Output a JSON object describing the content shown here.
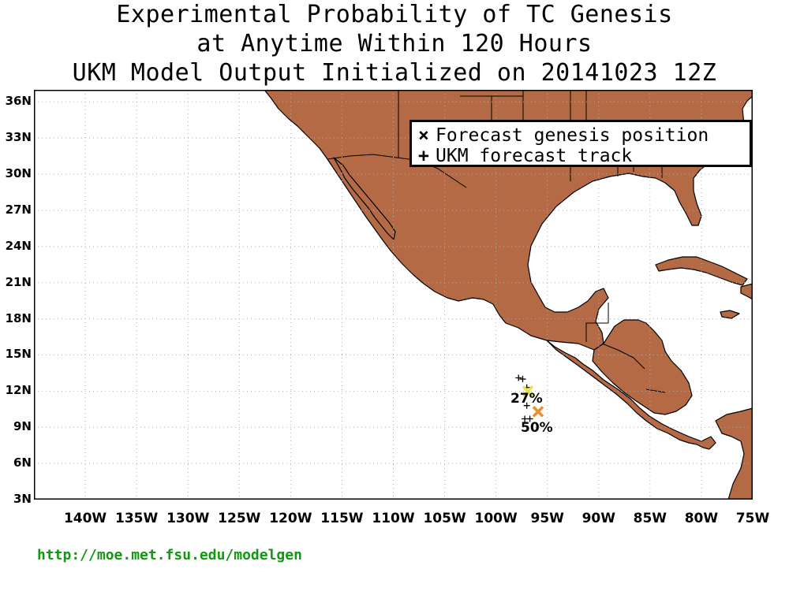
{
  "title": {
    "line1": "Experimental Probability of TC Genesis",
    "line2": "at Anytime Within 120 Hours",
    "line3": "UKM Model Output Initialized on 20141023 12Z"
  },
  "map": {
    "lon_range": [
      -145,
      -75
    ],
    "lat_range": [
      3,
      37
    ],
    "land_color": "#B36A45",
    "ocean_color": "#FFFFFF",
    "grid": true,
    "lat_ticks": [
      "3N",
      "6N",
      "9N",
      "12N",
      "15N",
      "18N",
      "21N",
      "24N",
      "27N",
      "30N",
      "33N",
      "36N"
    ],
    "lon_ticks": [
      "140W",
      "135W",
      "130W",
      "125W",
      "120W",
      "115W",
      "110W",
      "105W",
      "100W",
      "95W",
      "90W",
      "85W",
      "80W",
      "75W"
    ]
  },
  "legend": {
    "genesis": {
      "symbol": "×",
      "label": "Forecast genesis position"
    },
    "track": {
      "symbol": "+",
      "label": "UKM forecast track"
    }
  },
  "genesis_points": [
    {
      "lon": -96.9,
      "lat": 12.0,
      "color": "#E8E24A",
      "probability": "27%"
    },
    {
      "lon": -95.9,
      "lat": 10.3,
      "color": "#F08A2A",
      "probability": "50%"
    }
  ],
  "track_points": [
    {
      "lon": -97.8,
      "lat": 13.1
    },
    {
      "lon": -97.4,
      "lat": 13.0
    },
    {
      "lon": -97.0,
      "lat": 12.3
    },
    {
      "lon": -97.0,
      "lat": 10.8
    },
    {
      "lon": -97.2,
      "lat": 9.7
    },
    {
      "lon": -96.7,
      "lat": 9.7
    }
  ],
  "footer": {
    "url": "http://moe.met.fsu.edu/modelgen"
  }
}
